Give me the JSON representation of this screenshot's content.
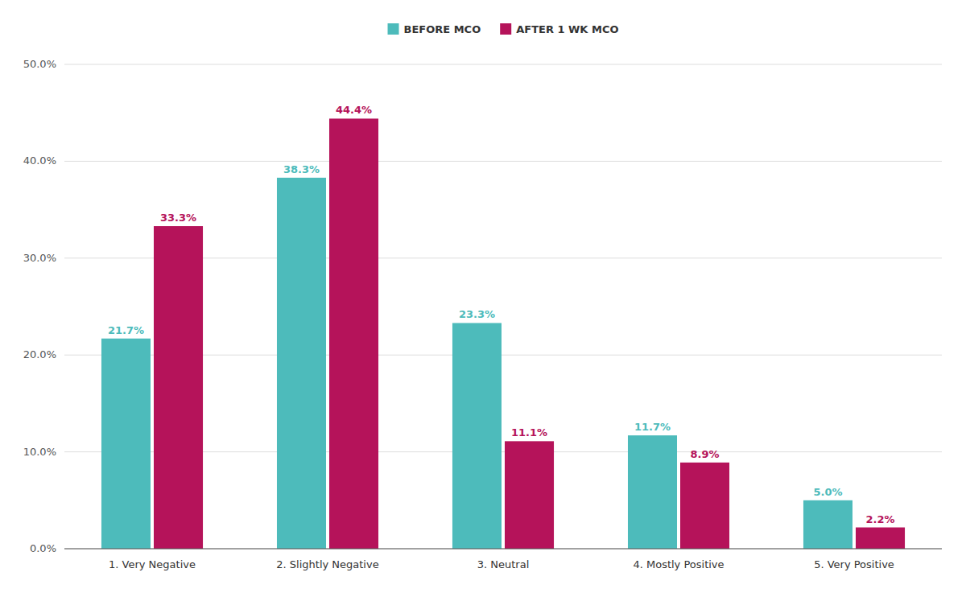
{
  "chart_data": {
    "type": "bar",
    "categories": [
      "1. Very Negative",
      "2. Slightly Negative",
      "3. Neutral",
      "4. Mostly Positive",
      "5. Very Positive"
    ],
    "series": [
      {
        "name": "BEFORE MCO",
        "color": "#4DBBBB",
        "values": [
          21.7,
          38.3,
          23.3,
          11.7,
          5.0
        ],
        "value_labels": [
          "21.7%",
          "38.3%",
          "23.3%",
          "11.7%",
          "5.0%"
        ]
      },
      {
        "name": "AFTER 1 WK MCO",
        "color": "#B5135A",
        "values": [
          33.3,
          44.4,
          11.1,
          8.9,
          2.2
        ],
        "value_labels": [
          "33.3%",
          "44.4%",
          "11.1%",
          "8.9%",
          "2.2%"
        ]
      }
    ],
    "ylim": [
      0,
      50
    ],
    "yticks": [
      {
        "value": 0,
        "label": "0.0%"
      },
      {
        "value": 10,
        "label": "10.0%"
      },
      {
        "value": 20,
        "label": "20.0%"
      },
      {
        "value": 30,
        "label": "30.0%"
      },
      {
        "value": 40,
        "label": "40.0%"
      },
      {
        "value": 50,
        "label": "50.0%"
      }
    ],
    "grid": true,
    "legend": "top",
    "data_labels": true
  }
}
